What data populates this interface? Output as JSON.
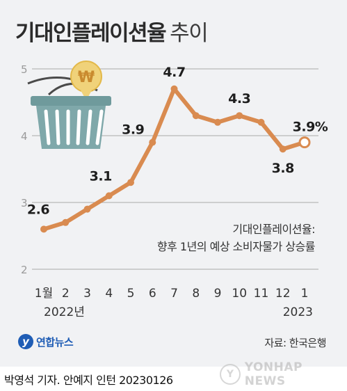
{
  "title": {
    "main": "기대인플레이션율",
    "sub": "추이"
  },
  "chart_data": {
    "type": "line",
    "categories": [
      "1월",
      "2",
      "3",
      "4",
      "5",
      "6",
      "7",
      "8",
      "9",
      "10",
      "11",
      "12",
      "1"
    ],
    "year_labels": [
      "2022년",
      "2023"
    ],
    "values": [
      2.6,
      2.7,
      2.9,
      3.1,
      3.3,
      3.9,
      4.7,
      4.3,
      4.2,
      4.3,
      4.2,
      3.8,
      3.9
    ],
    "data_labels": [
      {
        "index": 0,
        "text": "2.6"
      },
      {
        "index": 3,
        "text": "3.1"
      },
      {
        "index": 5,
        "text": "3.9"
      },
      {
        "index": 6,
        "text": "4.7"
      },
      {
        "index": 9,
        "text": "4.3"
      },
      {
        "index": 11,
        "text": "3.8"
      },
      {
        "index": 12,
        "text": "3.9%"
      }
    ],
    "yticks": [
      2,
      3,
      4,
      5
    ],
    "ylim": [
      2,
      5
    ],
    "grid": true,
    "line_color": "#d98b50",
    "last_point": "hollow"
  },
  "note": {
    "line1": "기대인플레이션율:",
    "line2": "향후 1년의 예상 소비자물가 상승률"
  },
  "illustration": {
    "name": "shopping-basket-icon",
    "coin_symbol": "₩"
  },
  "logo": {
    "text": "연합뉴스"
  },
  "source": "자료: 한국은행",
  "credit": "박영석 기자. 안예지 인턴  20230126",
  "watermark": "YONHAP NEWS",
  "colors": {
    "background": "#f1f2f4",
    "basket": "#6f9a9c",
    "coin": "#f0d27a"
  }
}
